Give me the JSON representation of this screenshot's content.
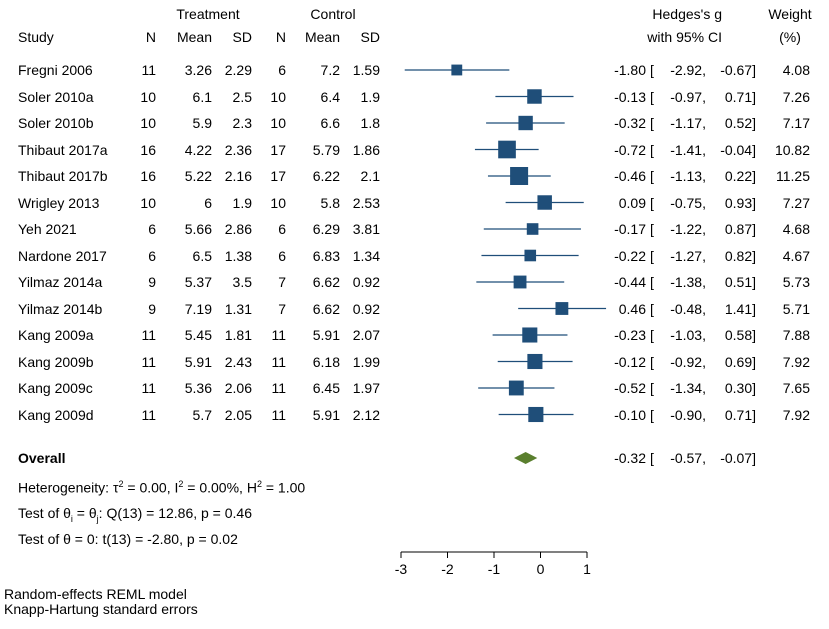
{
  "header": {
    "treatment": "Treatment",
    "control": "Control",
    "study": "Study",
    "n1": "N",
    "mean1": "Mean",
    "sd1": "SD",
    "n2": "N",
    "mean2": "Mean",
    "sd2": "SD",
    "effect_line1": "Hedges's g",
    "effect_line2": "with 95% CI",
    "weight_line1": "Weight",
    "weight_line2": "(%)"
  },
  "chart_data": {
    "type": "forest",
    "xlim": [
      -3,
      1
    ],
    "ticks": [
      "-3",
      "-2",
      "-1",
      "0",
      "1"
    ],
    "tick_values": [
      -3,
      -2,
      -1,
      0,
      1
    ],
    "studies": [
      {
        "name": "Fregni 2006",
        "n1": "11",
        "m1": "3.26",
        "sd1": "2.29",
        "n2": "6",
        "m2": "7.2",
        "sd2": "1.59",
        "g": -1.8,
        "lo": -2.92,
        "hi": -0.67,
        "g_text": "-1.80",
        "lo_text": "-2.92,",
        "hi_text": "-0.67]",
        "w": "4.08",
        "wv": 4.08
      },
      {
        "name": "Soler 2010a",
        "n1": "10",
        "m1": "6.1",
        "sd1": "2.5",
        "n2": "10",
        "m2": "6.4",
        "sd2": "1.9",
        "g": -0.13,
        "lo": -0.97,
        "hi": 0.71,
        "g_text": "-0.13",
        "lo_text": "-0.97,",
        "hi_text": "0.71]",
        "w": "7.26",
        "wv": 7.26
      },
      {
        "name": "Soler 2010b",
        "n1": "10",
        "m1": "5.9",
        "sd1": "2.3",
        "n2": "10",
        "m2": "6.6",
        "sd2": "1.8",
        "g": -0.32,
        "lo": -1.17,
        "hi": 0.52,
        "g_text": "-0.32",
        "lo_text": "-1.17,",
        "hi_text": "0.52]",
        "w": "7.17",
        "wv": 7.17
      },
      {
        "name": "Thibaut 2017a",
        "n1": "16",
        "m1": "4.22",
        "sd1": "2.36",
        "n2": "17",
        "m2": "5.79",
        "sd2": "1.86",
        "g": -0.72,
        "lo": -1.41,
        "hi": -0.04,
        "g_text": "-0.72",
        "lo_text": "-1.41,",
        "hi_text": "-0.04]",
        "w": "10.82",
        "wv": 10.82
      },
      {
        "name": "Thibaut 2017b",
        "n1": "16",
        "m1": "5.22",
        "sd1": "2.16",
        "n2": "17",
        "m2": "6.22",
        "sd2": "2.1",
        "g": -0.46,
        "lo": -1.13,
        "hi": 0.22,
        "g_text": "-0.46",
        "lo_text": "-1.13,",
        "hi_text": "0.22]",
        "w": "11.25",
        "wv": 11.25
      },
      {
        "name": "Wrigley 2013",
        "n1": "10",
        "m1": "6",
        "sd1": "1.9",
        "n2": "10",
        "m2": "5.8",
        "sd2": "2.53",
        "g": 0.09,
        "lo": -0.75,
        "hi": 0.93,
        "g_text": "0.09",
        "lo_text": "-0.75,",
        "hi_text": "0.93]",
        "w": "7.27",
        "wv": 7.27
      },
      {
        "name": "Yeh 2021",
        "n1": "6",
        "m1": "5.66",
        "sd1": "2.86",
        "n2": "6",
        "m2": "6.29",
        "sd2": "3.81",
        "g": -0.17,
        "lo": -1.22,
        "hi": 0.87,
        "g_text": "-0.17",
        "lo_text": "-1.22,",
        "hi_text": "0.87]",
        "w": "4.68",
        "wv": 4.68
      },
      {
        "name": "Nardone 2017",
        "n1": "6",
        "m1": "6.5",
        "sd1": "1.38",
        "n2": "6",
        "m2": "6.83",
        "sd2": "1.34",
        "g": -0.22,
        "lo": -1.27,
        "hi": 0.82,
        "g_text": "-0.22",
        "lo_text": "-1.27,",
        "hi_text": "0.82]",
        "w": "4.67",
        "wv": 4.67
      },
      {
        "name": "Yilmaz 2014a",
        "n1": "9",
        "m1": "5.37",
        "sd1": "3.5",
        "n2": "7",
        "m2": "6.62",
        "sd2": "0.92",
        "g": -0.44,
        "lo": -1.38,
        "hi": 0.51,
        "g_text": "-0.44",
        "lo_text": "-1.38,",
        "hi_text": "0.51]",
        "w": "5.73",
        "wv": 5.73
      },
      {
        "name": "Yilmaz 2014b",
        "n1": "9",
        "m1": "7.19",
        "sd1": "1.31",
        "n2": "7",
        "m2": "6.62",
        "sd2": "0.92",
        "g": 0.46,
        "lo": -0.48,
        "hi": 1.41,
        "g_text": "0.46",
        "lo_text": "-0.48,",
        "hi_text": "1.41]",
        "w": "5.71",
        "wv": 5.71
      },
      {
        "name": "Kang 2009a",
        "n1": "11",
        "m1": "5.45",
        "sd1": "1.81",
        "n2": "11",
        "m2": "5.91",
        "sd2": "2.07",
        "g": -0.23,
        "lo": -1.03,
        "hi": 0.58,
        "g_text": "-0.23",
        "lo_text": "-1.03,",
        "hi_text": "0.58]",
        "w": "7.88",
        "wv": 7.88
      },
      {
        "name": "Kang 2009b",
        "n1": "11",
        "m1": "5.91",
        "sd1": "2.43",
        "n2": "11",
        "m2": "6.18",
        "sd2": "1.99",
        "g": -0.12,
        "lo": -0.92,
        "hi": 0.69,
        "g_text": "-0.12",
        "lo_text": "-0.92,",
        "hi_text": "0.69]",
        "w": "7.92",
        "wv": 7.92
      },
      {
        "name": "Kang 2009c",
        "n1": "11",
        "m1": "5.36",
        "sd1": "2.06",
        "n2": "11",
        "m2": "6.45",
        "sd2": "1.97",
        "g": -0.52,
        "lo": -1.34,
        "hi": 0.3,
        "g_text": "-0.52",
        "lo_text": "-1.34,",
        "hi_text": "0.30]",
        "w": "7.65",
        "wv": 7.65
      },
      {
        "name": "Kang 2009d",
        "n1": "11",
        "m1": "5.7",
        "sd1": "2.05",
        "n2": "11",
        "m2": "5.91",
        "sd2": "2.12",
        "g": -0.1,
        "lo": -0.9,
        "hi": 0.71,
        "g_text": "-0.10",
        "lo_text": "-0.90,",
        "hi_text": "0.71]",
        "w": "7.92",
        "wv": 7.92
      }
    ],
    "overall": {
      "label": "Overall",
      "g": -0.32,
      "lo": -0.57,
      "hi": -0.07,
      "g_text": "-0.32",
      "lo_text": "-0.57,",
      "hi_text": "-0.07]"
    },
    "colors": {
      "marker": "#1f4e79",
      "line": "#1f4e79",
      "diamond": "#5a7f2e",
      "axis": "#000000"
    }
  },
  "stats": {
    "heterogeneity_prefix": "Heterogeneity: τ",
    "heterogeneity_tau_exp": "2",
    "heterogeneity_mid": " = 0.00, I",
    "heterogeneity_i_exp": "2",
    "heterogeneity_mid2": " = 0.00%, H",
    "heterogeneity_h_exp": "2",
    "heterogeneity_end": " = 1.00",
    "test_theta_prefix": "Test of θ",
    "test_theta_sub_i": "i",
    "test_theta_eq": " = θ",
    "test_theta_sub_j": "j",
    "test_theta_end": ": Q(13) = 12.86, p = 0.46",
    "test_zero": "Test of θ = 0: t(13) = -2.80, p = 0.02"
  },
  "footer": {
    "model": "Random-effects REML model",
    "errors": "Knapp-Hartung standard errors"
  }
}
